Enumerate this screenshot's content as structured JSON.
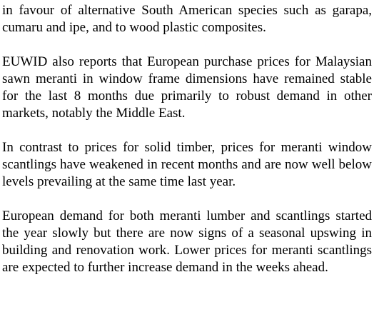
{
  "paragraphs": [
    "in favour of alternative South American species such as garapa, cumaru and ipe, and to wood plastic composites.",
    "EUWID also reports that European purchase prices for Malaysian sawn meranti in window frame dimensions have remained stable for the last 8 months due primarily to robust demand in other markets, notably the Middle East.",
    "In contrast to prices for solid timber, prices for meranti window scantlings have weakened in recent months and are now well below levels prevailing at the same time last year.",
    "European demand for both meranti lumber and scantlings started the year slowly but there are now signs of a seasonal upswing in building and renovation work. Lower prices for meranti scantlings are expected to further increase demand in the weeks ahead."
  ]
}
